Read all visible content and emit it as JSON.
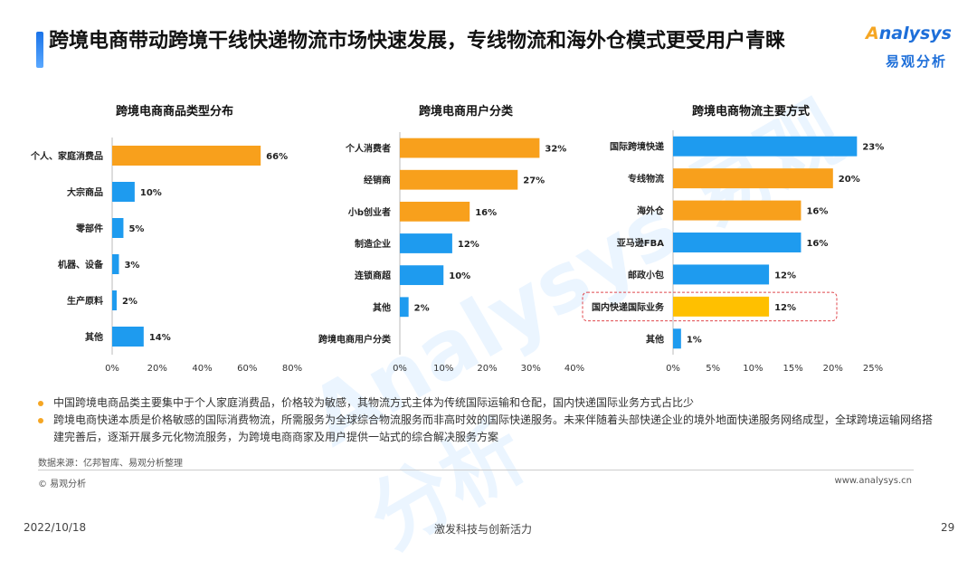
{
  "page": {
    "title": "跨境电商带动跨境干线快递物流市场快速发展，专线物流和海外仓模式更受用户青睐",
    "logo_en": "nalysys",
    "logo_en_a": "A",
    "logo_cn": "易观分析",
    "watermark": "Analysys 易观分析"
  },
  "colors": {
    "orange": "#F8A01C",
    "blue": "#1E9BEF",
    "gold": "#FFC000",
    "accent": "#1e6fd9",
    "highlight_border": "#e0474c"
  },
  "chart_data": [
    {
      "type": "bar",
      "orientation": "horizontal",
      "title": "跨境电商商品类型分布",
      "categories": [
        "个人、家庭消费品",
        "大宗商品",
        "零部件",
        "机器、设备",
        "生产原料",
        "其他"
      ],
      "values": [
        66,
        10,
        5,
        3,
        2,
        14
      ],
      "value_labels": [
        "66%",
        "10%",
        "5%",
        "3%",
        "2%",
        "14%"
      ],
      "bar_colors": [
        "orange",
        "blue",
        "blue",
        "blue",
        "blue",
        "blue"
      ],
      "xlim": [
        0,
        80
      ],
      "ticks": [
        "0%",
        "20%",
        "40%",
        "60%",
        "80%"
      ]
    },
    {
      "type": "bar",
      "orientation": "horizontal",
      "title": "跨境电商用户分类",
      "categories": [
        "个人消费者",
        "经销商",
        "小b创业者",
        "制造企业",
        "连锁商超",
        "其他",
        "跨境电商用户分类"
      ],
      "values": [
        32,
        27,
        16,
        12,
        10,
        2,
        null
      ],
      "value_labels": [
        "32%",
        "27%",
        "16%",
        "12%",
        "10%",
        "2%",
        ""
      ],
      "bar_colors": [
        "orange",
        "orange",
        "orange",
        "blue",
        "blue",
        "blue",
        "blue"
      ],
      "xlim": [
        0,
        40
      ],
      "ticks": [
        "0%",
        "10%",
        "20%",
        "30%",
        "40%"
      ]
    },
    {
      "type": "bar",
      "orientation": "horizontal",
      "title": "跨境电商物流主要方式",
      "categories": [
        "国际跨境快递",
        "专线物流",
        "海外仓",
        "亚马逊FBA",
        "邮政小包",
        "国内快递国际业务",
        "其他"
      ],
      "values": [
        23,
        20,
        16,
        16,
        12,
        12,
        1
      ],
      "value_labels": [
        "23%",
        "20%",
        "16%",
        "16%",
        "12%",
        "12%",
        "1%"
      ],
      "bar_colors": [
        "blue",
        "orange",
        "orange",
        "blue",
        "blue",
        "gold",
        "blue"
      ],
      "highlight_category": "国内快递国际业务",
      "xlim": [
        0,
        25
      ],
      "ticks": [
        "0%",
        "5%",
        "10%",
        "15%",
        "20%",
        "25%"
      ]
    }
  ],
  "notes": [
    "中国跨境电商品类主要集中于个人家庭消费品，价格较为敏感，其物流方式主体为传统国际运输和仓配，国内快递国际业务方式占比少",
    "跨境电商快递本质是价格敏感的国际消费物流，所需服务为全球综合物流服务而非高时效的国际快递服务。未来伴随着头部快递企业的境外地面快递服务网络成型，全球跨境运输网络搭建完善后，逐渐开展多元化物流服务，为跨境电商商家及用户提供一站式的综合解决服务方案"
  ],
  "source": "数据来源：亿邦智库、易观分析整理",
  "copyright": "© 易观分析",
  "url": "www.analysys.cn",
  "footer": {
    "date": "2022/10/18",
    "slogan": "激发科技与创新活力",
    "page_number": "29"
  }
}
